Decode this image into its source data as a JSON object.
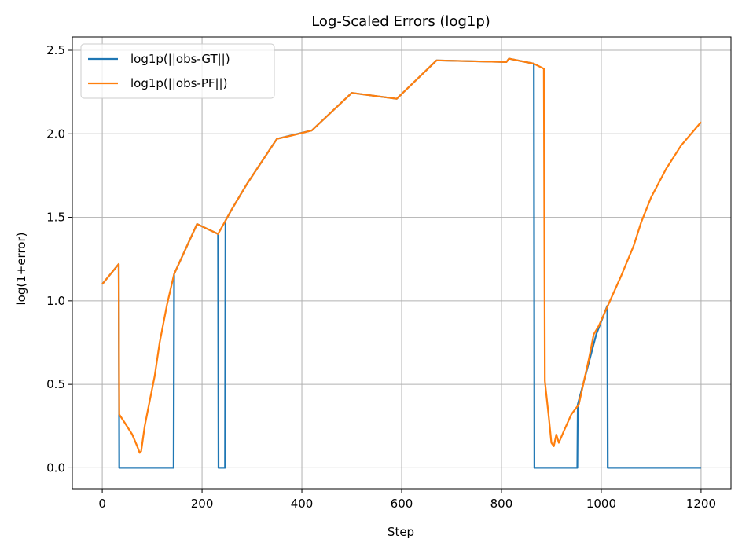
{
  "chart_data": {
    "type": "line",
    "title": "Log-Scaled Errors (log1p)",
    "xlabel": "Step",
    "ylabel": "log(1+error)",
    "xlim": [
      -60,
      1260
    ],
    "ylim": [
      -0.125,
      2.58
    ],
    "xticks": [
      0,
      200,
      400,
      600,
      800,
      1000,
      1200
    ],
    "yticks": [
      0.0,
      0.5,
      1.0,
      1.5,
      2.0,
      2.5
    ],
    "xtick_labels": [
      "0",
      "200",
      "400",
      "600",
      "800",
      "1000",
      "1200"
    ],
    "ytick_labels": [
      "0.0",
      "0.5",
      "1.0",
      "1.5",
      "2.0",
      "2.5"
    ],
    "grid": true,
    "legend_position": "upper-left",
    "series": [
      {
        "name": "log1p(||obs-GT||)",
        "color": "#1f77b4",
        "x": [
          0,
          33,
          34,
          143,
          144,
          190,
          232,
          233,
          246,
          247,
          260,
          290,
          350,
          420,
          500,
          590,
          670,
          810,
          815,
          865,
          866,
          952,
          953,
          990,
          1012,
          1013,
          1200
        ],
        "y": [
          1.1,
          1.22,
          0.0,
          0.0,
          1.16,
          1.46,
          1.4,
          0.0,
          0.0,
          1.48,
          1.55,
          1.7,
          1.97,
          2.02,
          2.245,
          2.21,
          2.44,
          2.43,
          2.45,
          2.42,
          0.0,
          0.0,
          0.38,
          0.8,
          0.97,
          0.0,
          0.0
        ]
      },
      {
        "name": "log1p(||obs-PF||)",
        "color": "#ff7f0e",
        "x": [
          0,
          33,
          34,
          45,
          60,
          70,
          75,
          78,
          85,
          95,
          105,
          115,
          130,
          144,
          190,
          232,
          247,
          260,
          290,
          350,
          380,
          420,
          500,
          590,
          670,
          810,
          815,
          865,
          885,
          887,
          895,
          900,
          905,
          910,
          915,
          925,
          940,
          955,
          975,
          985,
          995,
          1013,
          1040,
          1065,
          1080,
          1100,
          1130,
          1160,
          1200
        ],
        "y": [
          1.1,
          1.22,
          0.32,
          0.27,
          0.2,
          0.13,
          0.09,
          0.1,
          0.25,
          0.4,
          0.55,
          0.75,
          0.98,
          1.16,
          1.46,
          1.4,
          1.48,
          1.55,
          1.7,
          1.97,
          1.99,
          2.02,
          2.245,
          2.21,
          2.44,
          2.43,
          2.45,
          2.42,
          2.39,
          0.52,
          0.3,
          0.15,
          0.13,
          0.2,
          0.15,
          0.22,
          0.32,
          0.38,
          0.65,
          0.8,
          0.85,
          0.97,
          1.15,
          1.33,
          1.47,
          1.62,
          1.79,
          1.93,
          2.07
        ]
      }
    ]
  }
}
